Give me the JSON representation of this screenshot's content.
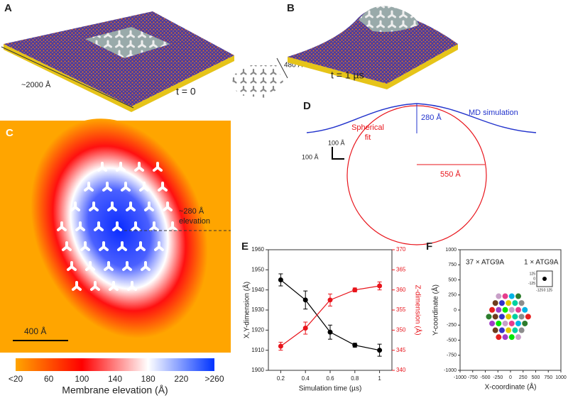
{
  "panel_a": {
    "label": "A",
    "scale": "~2000 Å",
    "time": "t = 0",
    "lattice_size": "480 Å"
  },
  "panel_b": {
    "label": "B",
    "time": "t = 1 µs"
  },
  "panel_c": {
    "label": "C",
    "elevation": [
      "~280 Å",
      "elevation"
    ],
    "scale": "400 Å",
    "colorbar": {
      "label": "Membrane elevation (Å)",
      "lim": [
        20,
        260
      ],
      "ticks": [
        {
          "value": 20,
          "label": "<20"
        },
        60,
        100,
        140,
        180,
        220,
        {
          "value": 260,
          "label": ">260"
        }
      ],
      "colors": [
        "#ffa500",
        "#ff0000",
        "#ffffff",
        "#0033ff"
      ]
    }
  },
  "panel_d": {
    "label": "D",
    "height": "280 Å",
    "md": "MD simulation",
    "fit": [
      "Spherical",
      "fit"
    ],
    "radius": "550 Å",
    "scale_x": "100 Å",
    "scale_y": "100 Å"
  },
  "panel_labels": [
    "E",
    "F"
  ],
  "chart_data": [
    {
      "type": "line",
      "xlabel": "Simulation time (µs)",
      "ylabel": "X,Y-dimension (Å)",
      "y2label": "Z-dimension (Å)",
      "x": [
        0.2,
        0.4,
        0.6,
        0.8,
        1
      ],
      "xlim": [
        0.1,
        1.1
      ],
      "xticks": [
        0.2,
        0.4,
        0.6,
        0.8,
        1
      ],
      "ylim": [
        1900,
        1960
      ],
      "yticks": [
        1900,
        1910,
        1920,
        1930,
        1940,
        1950,
        1960
      ],
      "y2lim": [
        340,
        370
      ],
      "y2ticks": [
        340,
        345,
        350,
        355,
        360,
        365,
        370
      ],
      "series": [
        {
          "color": "#000000",
          "values": [
            1945,
            1935,
            1919,
            1912.5,
            1910
          ],
          "errors": [
            3,
            4.5,
            3.5,
            1,
            3
          ]
        },
        {
          "color": "#e8141b",
          "axis": "y2",
          "values": [
            346,
            350.5,
            357.5,
            360,
            361
          ],
          "errors": [
            1,
            1.5,
            1.5,
            0.5,
            1
          ]
        }
      ]
    },
    {
      "type": "scatter",
      "annotation": "37 × ATG9A",
      "xlabel": "X-coordinate (Å)",
      "ylabel": "Y-coordinate (Å)",
      "xlim": [
        -1000,
        1000
      ],
      "xticks": [
        -1000,
        -750,
        -500,
        -250,
        0,
        250,
        500,
        750,
        1000
      ],
      "ylim": [
        -1000,
        1000
      ],
      "yticks": [
        -1000,
        -750,
        -500,
        -250,
        0,
        250,
        500,
        750,
        1000
      ],
      "x": [
        -235,
        -105,
        25,
        155,
        -300,
        -170,
        -40,
        90,
        220,
        -365,
        -235,
        -105,
        25,
        155,
        285,
        -430,
        -300,
        -170,
        -40,
        90,
        220,
        350,
        -365,
        -235,
        -105,
        25,
        155,
        285,
        -300,
        -170,
        -40,
        90,
        220,
        -235,
        -105,
        25,
        155
      ],
      "y": [
        229,
        229,
        229,
        229,
        116,
        116,
        116,
        116,
        116,
        3,
        3,
        3,
        3,
        3,
        3,
        -110,
        -110,
        -110,
        -110,
        -110,
        -110,
        -110,
        -223,
        -223,
        -223,
        -223,
        -223,
        -223,
        -336,
        -336,
        -336,
        -336,
        -336,
        -449,
        -449,
        -449,
        -449
      ],
      "palette": [
        "#c8a0c8",
        "#e63c8c",
        "#00b4e6",
        "#2d7d2d",
        "#6e3c1e",
        "#3232c8",
        "#e6c800",
        "#00d2a0",
        "#8c8c8c",
        "#e61e1e",
        "#a03cc8",
        "#00e600"
      ],
      "inset": {
        "annotation": "1 × ATG9A",
        "x": [
          0
        ],
        "y": [
          0
        ],
        "color": "#000000",
        "xlim": [
          -200,
          200
        ],
        "ylim": [
          -200,
          200
        ],
        "xticks": [
          -125,
          0,
          125
        ],
        "yticks": [
          -125,
          0,
          125
        ]
      }
    }
  ]
}
